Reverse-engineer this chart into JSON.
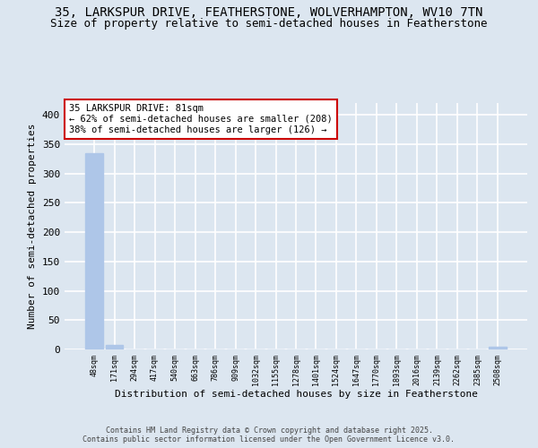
{
  "title": "35, LARKSPUR DRIVE, FEATHERSTONE, WOLVERHAMPTON, WV10 7TN",
  "subtitle": "Size of property relative to semi-detached houses in Featherstone",
  "xlabel": "Distribution of semi-detached houses by size in Featherstone",
  "ylabel": "Number of semi-detached properties",
  "bar_labels": [
    "48sqm",
    "171sqm",
    "294sqm",
    "417sqm",
    "540sqm",
    "663sqm",
    "786sqm",
    "909sqm",
    "1032sqm",
    "1155sqm",
    "1278sqm",
    "1401sqm",
    "1524sqm",
    "1647sqm",
    "1770sqm",
    "1893sqm",
    "2016sqm",
    "2139sqm",
    "2262sqm",
    "2385sqm",
    "2508sqm"
  ],
  "bar_values": [
    334,
    7,
    0,
    0,
    0,
    0,
    0,
    0,
    0,
    0,
    0,
    0,
    0,
    0,
    0,
    0,
    0,
    0,
    0,
    0,
    4
  ],
  "bar_colors": [
    "#aec6e8",
    "#aec6e8",
    "#aec6e8",
    "#aec6e8",
    "#aec6e8",
    "#aec6e8",
    "#aec6e8",
    "#aec6e8",
    "#aec6e8",
    "#aec6e8",
    "#aec6e8",
    "#aec6e8",
    "#aec6e8",
    "#aec6e8",
    "#aec6e8",
    "#aec6e8",
    "#aec6e8",
    "#aec6e8",
    "#aec6e8",
    "#aec6e8",
    "#aec6e8"
  ],
  "ylim": [
    0,
    420
  ],
  "yticks": [
    0,
    50,
    100,
    150,
    200,
    250,
    300,
    350,
    400
  ],
  "annotation_title": "35 LARKSPUR DRIVE: 81sqm",
  "annotation_line2": "← 62% of semi-detached houses are smaller (208)",
  "annotation_line3": "38% of semi-detached houses are larger (126) →",
  "annotation_box_color": "#cc0000",
  "background_color": "#dce6f0",
  "grid_color": "#ffffff",
  "title_fontsize": 10,
  "subtitle_fontsize": 9,
  "footer_line1": "Contains HM Land Registry data © Crown copyright and database right 2025.",
  "footer_line2": "Contains public sector information licensed under the Open Government Licence v3.0."
}
